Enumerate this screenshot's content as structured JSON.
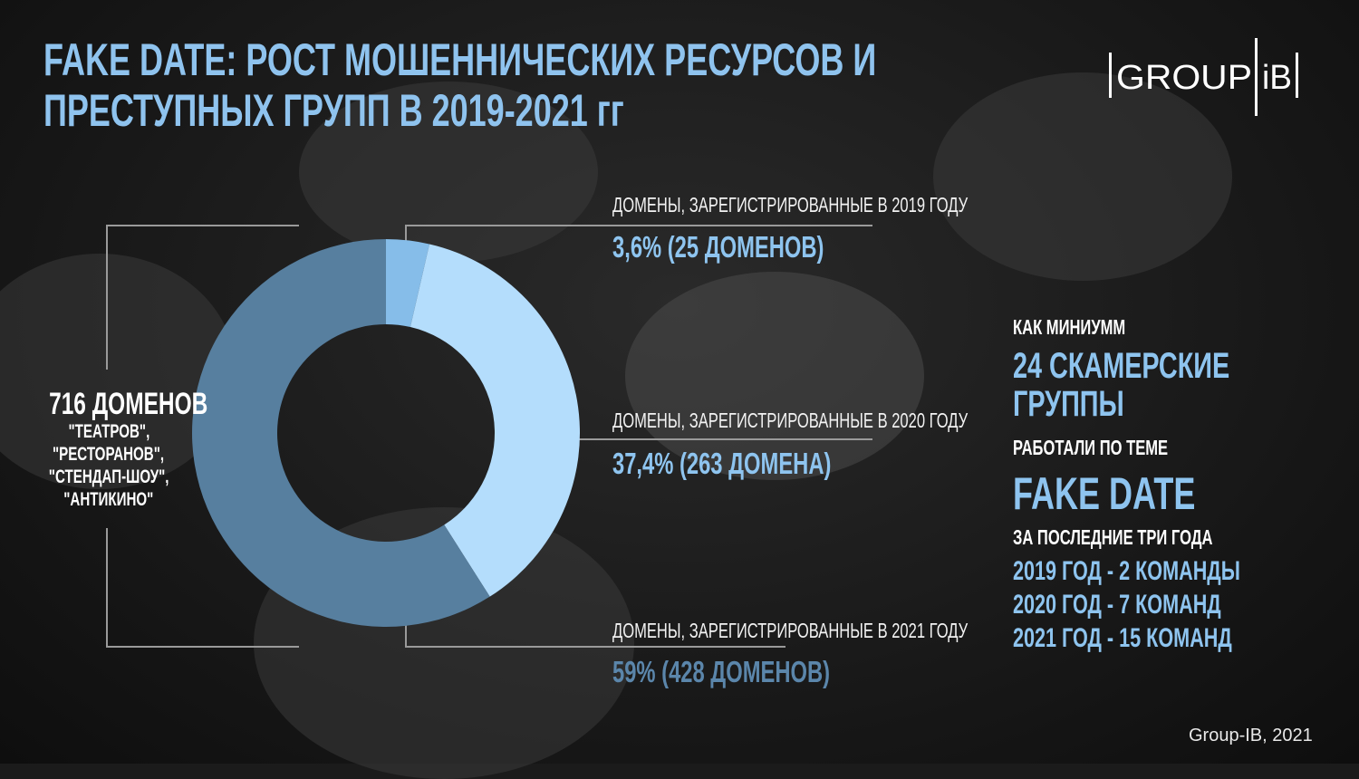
{
  "title": [
    "FAKE DATE: РОСТ МОШЕННИЧЕСКИХ РЕСУРСОВ И",
    "ПРЕСТУПНЫХ ГРУПП В 2019-2021 гг"
  ],
  "logo": {
    "text": "GROUP IB"
  },
  "total": {
    "value": "716 ДОМЕНОВ",
    "lines": [
      "\"ТЕАТРОВ\",",
      "\"РЕСТОРАНОВ\",",
      "\"СТЕНДАП-ШОУ\",",
      "\"АНТИКИНО\""
    ]
  },
  "chart_data": {
    "type": "pie",
    "donut": true,
    "start": "top",
    "direction": "clockwise",
    "categories": [
      "2019",
      "2020",
      "2021"
    ],
    "values": [
      3.6,
      37.4,
      59
    ],
    "counts": [
      25,
      263,
      428
    ],
    "colors": [
      "#86bde9",
      "#b4ddfc",
      "#577f9f"
    ],
    "labels": [
      {
        "caption": "ДОМЕНЫ, ЗАРЕГИСТРИРОВАННЫЕ В 2019 ГОДУ",
        "value": "3,6% (25 ДОМЕНОВ)"
      },
      {
        "caption": "ДОМЕНЫ, ЗАРЕГИСТРИРОВАННЫЕ В 2020 ГОДУ",
        "value": "37,4% (263 ДОМЕНА)"
      },
      {
        "caption": "ДОМЕНЫ, ЗАРЕГИСТРИРОВАННЫЕ В 2021 ГОДУ",
        "value": "59%  (428 ДОМЕНОВ)"
      }
    ]
  },
  "side": {
    "intro": "КАК МИНИУММ",
    "groups": [
      "24 СКАМЕРСКИЕ",
      "ГРУППЫ"
    ],
    "topic_label": "РАБОТАЛИ ПО ТЕМЕ",
    "topic": "FAKE DATE",
    "period": "ЗА ПОСЛЕДНИЕ ТРИ ГОДА",
    "years": [
      "2019 ГОД - 2 КОМАНДЫ",
      "2020 ГОД - 7 КОМАНД",
      "2021 ГОД - 15 КОМАНД"
    ]
  },
  "footer": "Group-IB, 2021"
}
